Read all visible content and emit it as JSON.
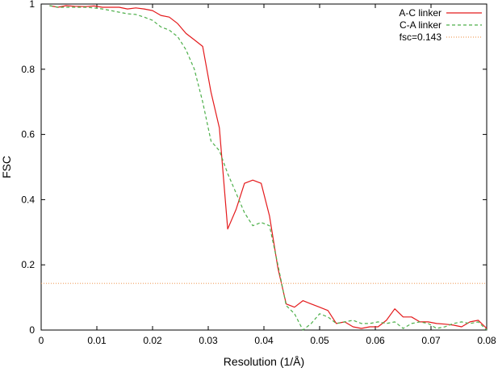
{
  "chart_data": {
    "type": "line",
    "xlabel": "Resolution (1/Å)",
    "ylabel": "FSC",
    "xlim": [
      0,
      0.08
    ],
    "ylim": [
      0,
      1
    ],
    "x_ticks": [
      0,
      0.01,
      0.02,
      0.03,
      0.04,
      0.05,
      0.06,
      0.07,
      0.08
    ],
    "x_tick_labels": [
      "0",
      "0.01",
      "0.02",
      "0.03",
      "0.04",
      "0.05",
      "0.06",
      "0.07",
      "0.08"
    ],
    "y_ticks": [
      0,
      0.2,
      0.4,
      0.6,
      0.8,
      1
    ],
    "y_tick_labels": [
      "0",
      "0.2",
      "0.4",
      "0.6",
      "0.8",
      "1"
    ],
    "grid": false,
    "legend_position": "top-right",
    "series": [
      {
        "name": "A-C linker",
        "color": "#e41a1c",
        "dash": "solid",
        "x": [
          0.0015,
          0.003,
          0.0045,
          0.006,
          0.008,
          0.0095,
          0.011,
          0.0125,
          0.014,
          0.0155,
          0.017,
          0.0185,
          0.02,
          0.0215,
          0.023,
          0.0245,
          0.026,
          0.0275,
          0.029,
          0.0305,
          0.032,
          0.0335,
          0.035,
          0.0365,
          0.038,
          0.0395,
          0.041,
          0.0425,
          0.044,
          0.0455,
          0.047,
          0.0485,
          0.05,
          0.0515,
          0.053,
          0.0545,
          0.056,
          0.0575,
          0.059,
          0.0605,
          0.062,
          0.0635,
          0.065,
          0.0665,
          0.068,
          0.0695,
          0.071,
          0.0725,
          0.074,
          0.0755,
          0.077,
          0.0785,
          0.08
        ],
        "y": [
          0.995,
          0.99,
          0.995,
          0.993,
          0.992,
          0.994,
          0.99,
          0.99,
          0.99,
          0.985,
          0.988,
          0.985,
          0.98,
          0.965,
          0.96,
          0.94,
          0.91,
          0.89,
          0.87,
          0.73,
          0.62,
          0.31,
          0.37,
          0.45,
          0.46,
          0.45,
          0.35,
          0.19,
          0.08,
          0.07,
          0.09,
          0.08,
          0.07,
          0.06,
          0.02,
          0.025,
          0.01,
          0.005,
          0.01,
          0.01,
          0.03,
          0.065,
          0.04,
          0.04,
          0.025,
          0.025,
          0.02,
          0.018,
          0.015,
          0.01,
          0.025,
          0.03,
          0.005
        ]
      },
      {
        "name": "C-A linker",
        "color": "#4daf4a",
        "dash": "dashed",
        "x": [
          0.0015,
          0.003,
          0.0045,
          0.006,
          0.008,
          0.0095,
          0.011,
          0.0125,
          0.014,
          0.0155,
          0.017,
          0.0185,
          0.02,
          0.0215,
          0.023,
          0.0245,
          0.026,
          0.0275,
          0.029,
          0.0305,
          0.032,
          0.0335,
          0.035,
          0.0365,
          0.038,
          0.0395,
          0.041,
          0.0425,
          0.044,
          0.0455,
          0.047,
          0.0485,
          0.05,
          0.0515,
          0.053,
          0.0545,
          0.056,
          0.0575,
          0.059,
          0.0605,
          0.062,
          0.0635,
          0.065,
          0.0665,
          0.068,
          0.0695,
          0.071,
          0.0725,
          0.074,
          0.0755,
          0.077,
          0.0785,
          0.08
        ],
        "y": [
          0.995,
          0.99,
          0.99,
          0.99,
          0.99,
          0.988,
          0.985,
          0.98,
          0.975,
          0.97,
          0.968,
          0.96,
          0.95,
          0.93,
          0.92,
          0.9,
          0.86,
          0.8,
          0.7,
          0.58,
          0.55,
          0.48,
          0.42,
          0.36,
          0.32,
          0.33,
          0.32,
          0.2,
          0.075,
          0.05,
          0.0,
          0.02,
          0.05,
          0.04,
          0.02,
          0.025,
          0.03,
          0.02,
          0.02,
          0.025,
          0.02,
          0.025,
          0.005,
          0.02,
          0.025,
          0.02,
          0.005,
          0.01,
          0.02,
          0.025,
          0.02,
          0.025,
          0.0
        ]
      },
      {
        "name": "fsc=0.143",
        "color": "#f0a060",
        "dash": "dotted",
        "x": [
          0,
          0.08
        ],
        "y": [
          0.143,
          0.143
        ]
      }
    ]
  }
}
